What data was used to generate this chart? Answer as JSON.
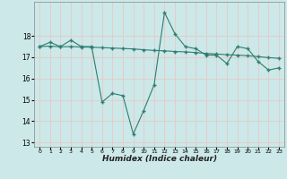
{
  "xlabel": "Humidex (Indice chaleur)",
  "background_color": "#cce8e8",
  "grid_color": "#e8c8c8",
  "line_color": "#2e7d72",
  "x_values": [
    0,
    1,
    2,
    3,
    4,
    5,
    6,
    7,
    8,
    9,
    10,
    11,
    12,
    13,
    14,
    15,
    16,
    17,
    18,
    19,
    20,
    21,
    22,
    23
  ],
  "y_main": [
    17.5,
    17.7,
    17.5,
    17.8,
    17.5,
    17.5,
    14.9,
    15.3,
    15.2,
    13.4,
    14.5,
    15.7,
    19.1,
    18.1,
    17.5,
    17.4,
    17.1,
    17.1,
    16.7,
    17.5,
    17.4,
    16.8,
    16.4,
    16.5
  ],
  "y_trend": [
    17.5,
    17.52,
    17.49,
    17.5,
    17.48,
    17.47,
    17.45,
    17.43,
    17.41,
    17.39,
    17.35,
    17.32,
    17.3,
    17.27,
    17.25,
    17.22,
    17.18,
    17.15,
    17.12,
    17.1,
    17.07,
    17.03,
    16.98,
    16.95
  ],
  "ylim": [
    12.8,
    19.6
  ],
  "yticks": [
    13,
    14,
    15,
    16,
    17,
    18
  ],
  "xlim": [
    -0.5,
    23.5
  ],
  "figsize": [
    3.2,
    2.0
  ],
  "dpi": 100
}
